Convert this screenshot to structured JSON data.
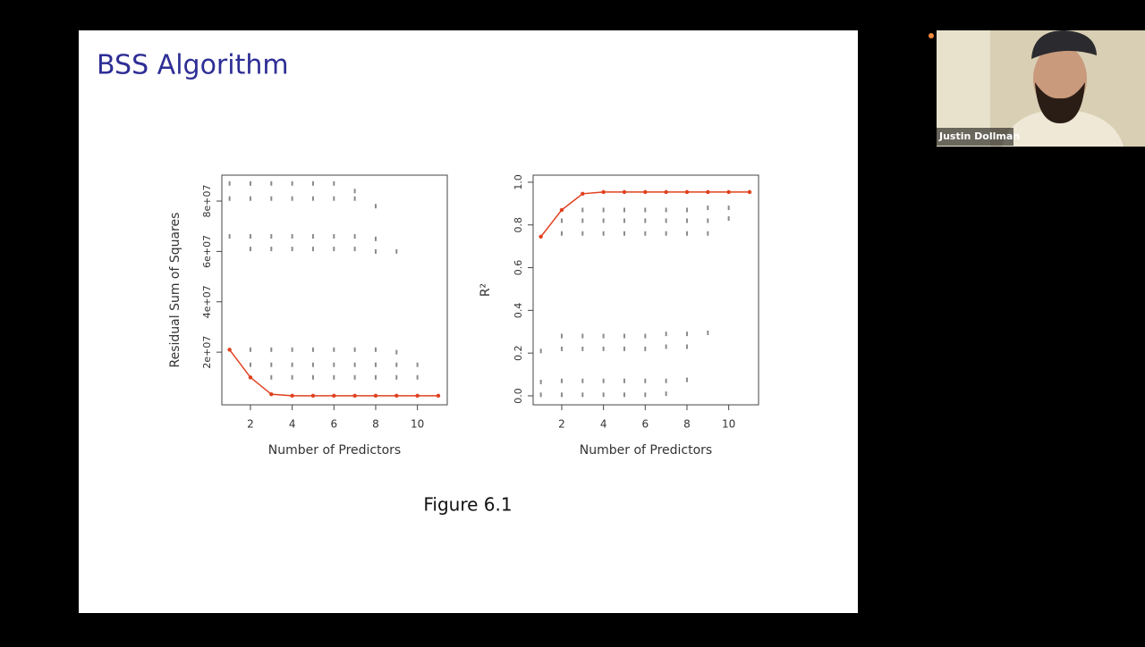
{
  "slide": {
    "title": "BSS Algorithm",
    "caption": "Figure 6.1"
  },
  "webcam": {
    "name": "Justin Dollman"
  },
  "chart_data": [
    {
      "type": "scatter",
      "xlabel": "Number of Predictors",
      "ylabel": "Residual Sum of Squares",
      "xlim": [
        0.63,
        11.43
      ],
      "ylim": [
        -900000,
        90300000
      ],
      "xticks": [
        2,
        4,
        6,
        8,
        10
      ],
      "yticks": [
        {
          "value": 20000000,
          "label": "2e+07"
        },
        {
          "value": 40000000,
          "label": "4e+07"
        },
        {
          "value": 60000000,
          "label": "6e+07"
        },
        {
          "value": 80000000,
          "label": "8e+07"
        }
      ],
      "series": [
        {
          "color": "#8a8a8a",
          "mode": "markers",
          "x": [
            1,
            1,
            1,
            2,
            2,
            2,
            2,
            2,
            2,
            3,
            3,
            3,
            3,
            3,
            3,
            3,
            4,
            4,
            4,
            4,
            4,
            4,
            4,
            5,
            5,
            5,
            5,
            5,
            5,
            5,
            6,
            6,
            6,
            6,
            6,
            6,
            6,
            7,
            7,
            7,
            7,
            7,
            7,
            7,
            8,
            8,
            8,
            8,
            8,
            8,
            9,
            9,
            9,
            9,
            10,
            10
          ],
          "values": [
            87000000,
            81000000,
            66000000,
            87000000,
            81000000,
            66000000,
            61000000,
            21000000,
            15000000,
            87000000,
            81000000,
            66000000,
            61000000,
            21000000,
            15000000,
            10000000,
            87000000,
            81000000,
            66000000,
            61000000,
            21000000,
            15000000,
            10000000,
            87000000,
            81000000,
            66000000,
            61000000,
            21000000,
            15000000,
            10000000,
            87000000,
            81000000,
            66000000,
            61000000,
            21000000,
            15000000,
            10000000,
            84000000,
            81000000,
            66000000,
            61000000,
            21000000,
            15000000,
            10000000,
            78000000,
            65000000,
            60000000,
            21000000,
            15000000,
            10000000,
            60000000,
            20000000,
            15000000,
            10000000,
            15000000,
            10000000
          ]
        },
        {
          "color": "#e0401f",
          "mode": "lines+markers",
          "x": [
            1,
            2,
            3,
            4,
            5,
            6,
            7,
            8,
            9,
            10,
            11
          ],
          "values": [
            21000000,
            10000000,
            3300000,
            2700000,
            2700000,
            2700000,
            2700000,
            2700000,
            2700000,
            2700000,
            2700000
          ]
        }
      ]
    },
    {
      "type": "scatter",
      "xlabel": "Number of Predictors",
      "ylabel": "R²",
      "xlim": [
        0.63,
        11.43
      ],
      "ylim": [
        -0.042,
        1.033
      ],
      "xticks": [
        2,
        4,
        6,
        8,
        10
      ],
      "yticks": [
        {
          "value": 0,
          "label": "0.0"
        },
        0.2,
        0.4,
        0.6,
        0.8,
        {
          "value": 1,
          "label": "1.0"
        }
      ],
      "series": [
        {
          "color": "#8a8a8a",
          "mode": "markers",
          "x": [
            1,
            1,
            1,
            2,
            2,
            2,
            2,
            2,
            2,
            3,
            3,
            3,
            3,
            3,
            3,
            3,
            4,
            4,
            4,
            4,
            4,
            4,
            4,
            5,
            5,
            5,
            5,
            5,
            5,
            5,
            6,
            6,
            6,
            6,
            6,
            6,
            6,
            7,
            7,
            7,
            7,
            7,
            7,
            7,
            8,
            8,
            8,
            8,
            8,
            8,
            9,
            9,
            9,
            9,
            10,
            10
          ],
          "values": [
            0.21,
            0.065,
            0.005,
            0.82,
            0.76,
            0.28,
            0.22,
            0.07,
            0.005,
            0.87,
            0.82,
            0.76,
            0.28,
            0.22,
            0.07,
            0.005,
            0.87,
            0.82,
            0.76,
            0.28,
            0.22,
            0.07,
            0.005,
            0.87,
            0.82,
            0.76,
            0.28,
            0.22,
            0.07,
            0.005,
            0.87,
            0.82,
            0.76,
            0.28,
            0.22,
            0.07,
            0.005,
            0.87,
            0.82,
            0.76,
            0.29,
            0.23,
            0.07,
            0.01,
            0.87,
            0.82,
            0.76,
            0.29,
            0.23,
            0.075,
            0.88,
            0.82,
            0.76,
            0.295,
            0.88,
            0.83
          ]
        },
        {
          "color": "#e0401f",
          "mode": "lines+markers",
          "x": [
            1,
            2,
            3,
            4,
            5,
            6,
            7,
            8,
            9,
            10,
            11
          ],
          "values": [
            0.745,
            0.87,
            0.946,
            0.954,
            0.954,
            0.954,
            0.954,
            0.954,
            0.954,
            0.954,
            0.954
          ]
        }
      ]
    }
  ]
}
